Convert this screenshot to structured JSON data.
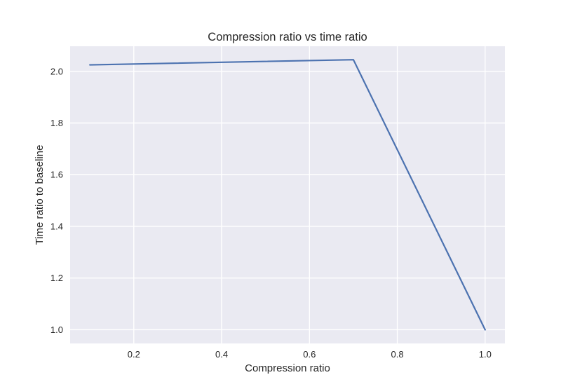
{
  "chart_data": {
    "type": "line",
    "title": "Compression ratio vs time ratio",
    "xlabel": "Compression ratio",
    "ylabel": "Time ratio to baseline",
    "xlim": [
      0.055,
      1.045
    ],
    "ylim": [
      0.947,
      2.097
    ],
    "grid": true,
    "x_ticks": [
      0.2,
      0.4,
      0.6,
      0.8,
      1.0
    ],
    "x_tick_labels": [
      "0.2",
      "0.4",
      "0.6",
      "0.8",
      "1.0"
    ],
    "y_ticks": [
      1.0,
      1.2,
      1.4,
      1.6,
      1.8,
      2.0
    ],
    "y_tick_labels": [
      "1.0",
      "1.2",
      "1.4",
      "1.6",
      "1.8",
      "2.0"
    ],
    "series": [
      {
        "color": "#4c72b0",
        "x": [
          0.1,
          0.7,
          1.0
        ],
        "y": [
          2.025,
          2.045,
          1.0
        ]
      }
    ],
    "colors": {
      "plot_background": "#eaeaf2",
      "grid": "#ffffff",
      "line": "#4c72b0"
    }
  }
}
